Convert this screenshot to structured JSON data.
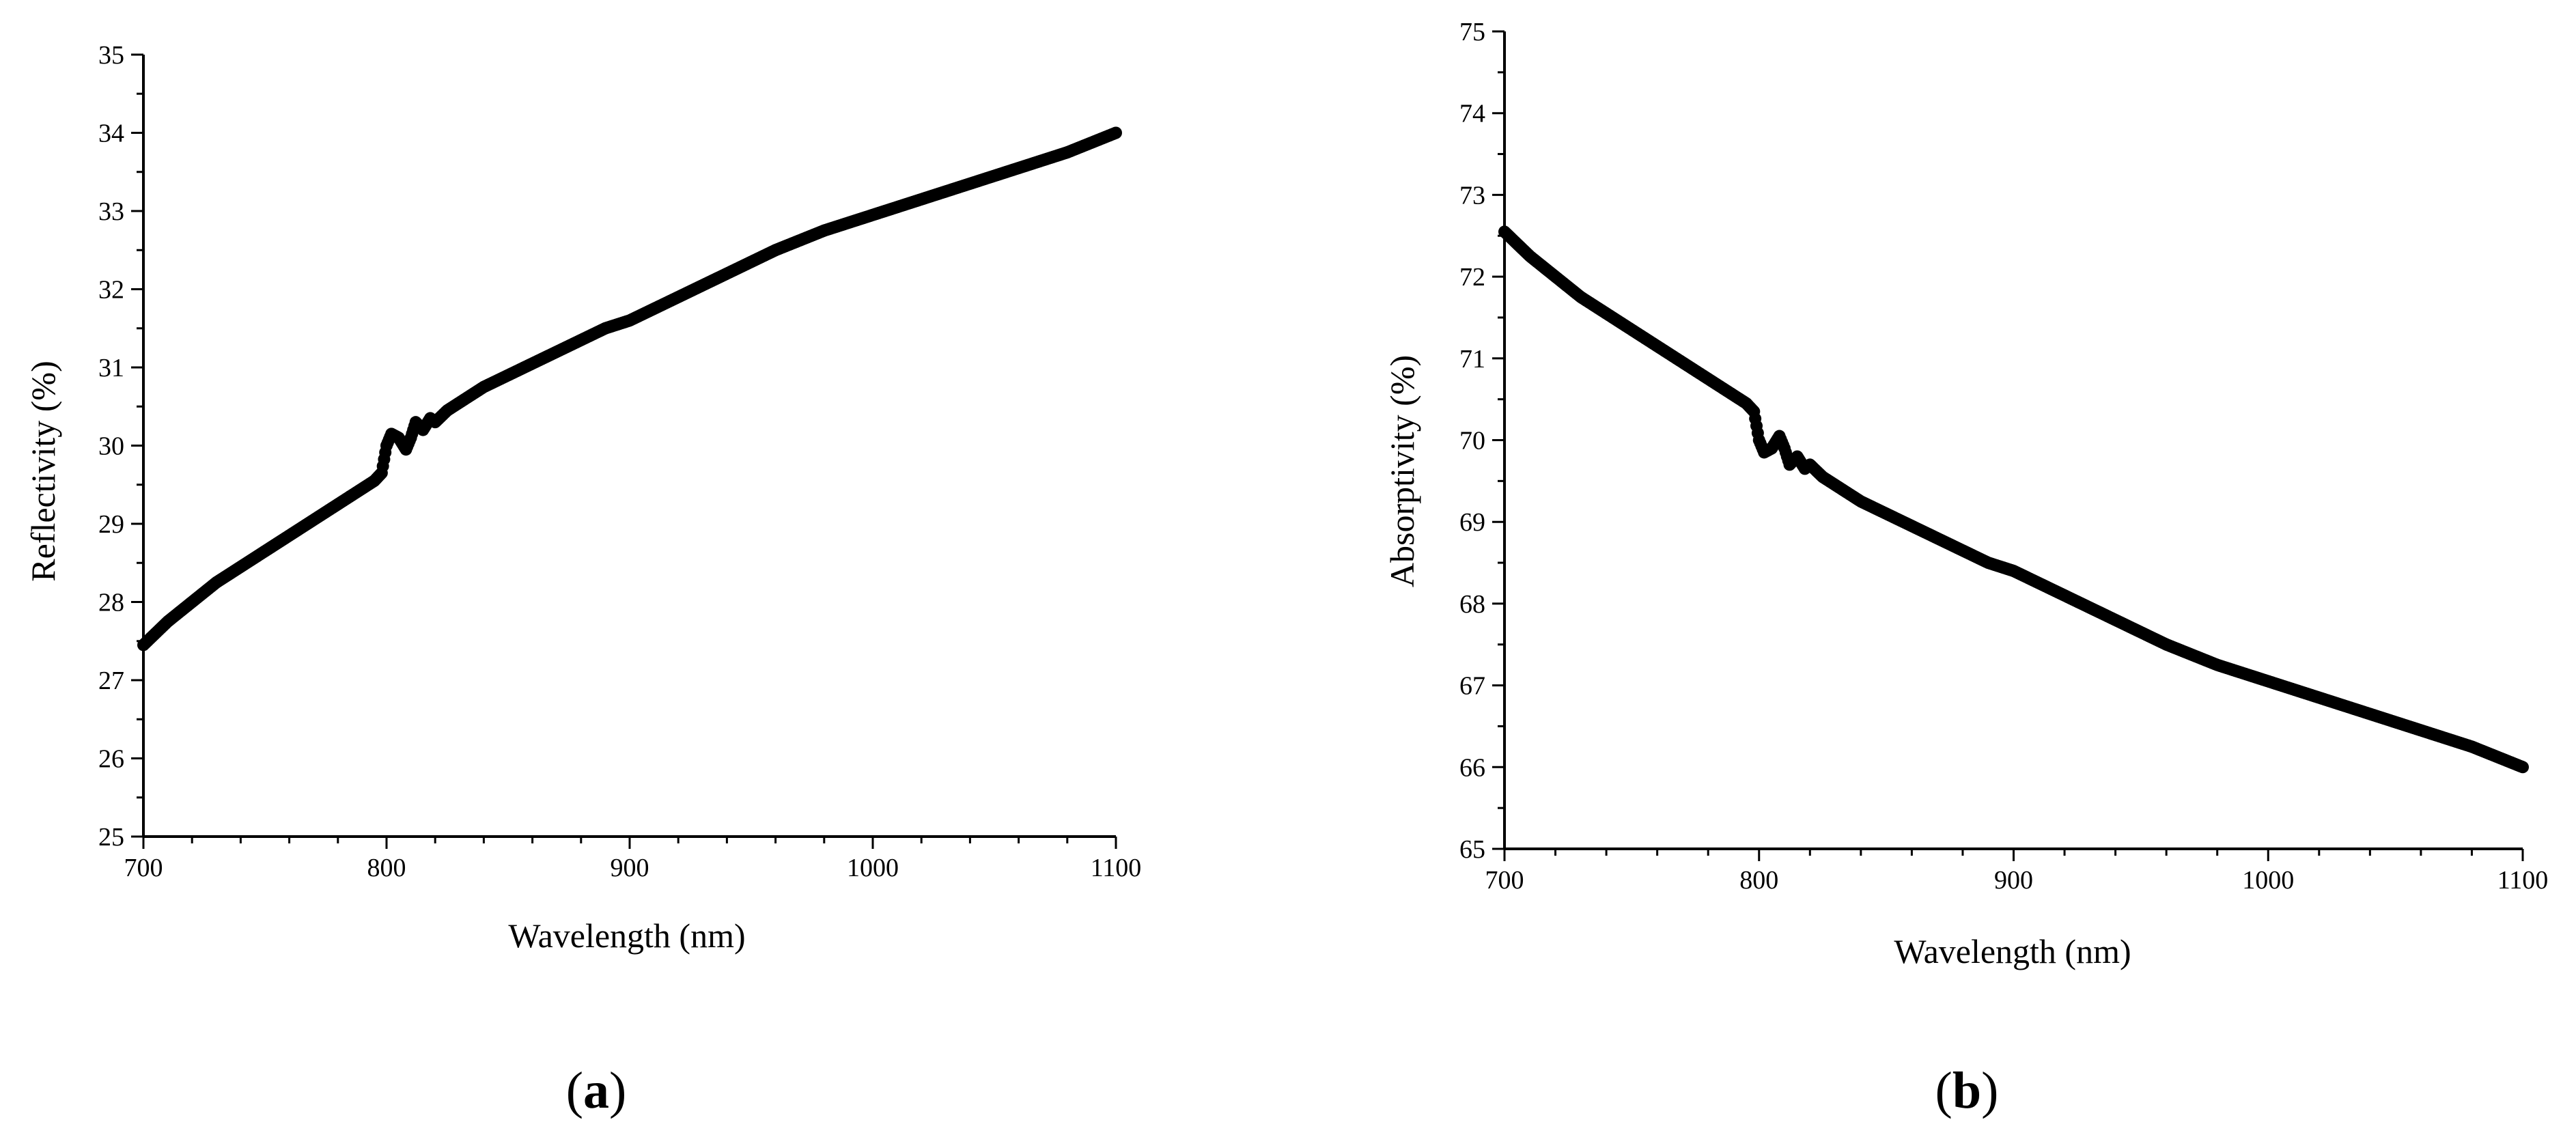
{
  "charts": [
    {
      "panel_label": "(a)",
      "panel_letter": "a",
      "xlabel": "Wavelength (nm)",
      "ylabel": "Reflectivity (%)"
    },
    {
      "panel_label": "(b)",
      "panel_letter": "b",
      "xlabel": "Wavelength (nm)",
      "ylabel": "Absorptivity (%)"
    }
  ],
  "chart_data": [
    {
      "type": "scatter",
      "title": "",
      "xlabel": "Wavelength (nm)",
      "ylabel": "Reflectivity (%)",
      "xlim": [
        700,
        1100
      ],
      "ylim": [
        25,
        35
      ],
      "x_ticks": [
        700,
        800,
        900,
        1000,
        1100
      ],
      "y_ticks": [
        25,
        26,
        27,
        28,
        29,
        30,
        31,
        32,
        33,
        34,
        35
      ],
      "grid": false,
      "series": [
        {
          "x": [
            700,
            710,
            720,
            730,
            740,
            750,
            760,
            770,
            780,
            790,
            795,
            798,
            800,
            802,
            805,
            808,
            810,
            812,
            815,
            818,
            820,
            825,
            830,
            840,
            850,
            860,
            870,
            880,
            890,
            900,
            920,
            940,
            960,
            980,
            1000,
            1020,
            1040,
            1060,
            1080,
            1100
          ],
          "y": [
            27.45,
            27.75,
            28.0,
            28.25,
            28.45,
            28.65,
            28.85,
            29.05,
            29.25,
            29.45,
            29.55,
            29.65,
            30.0,
            30.15,
            30.1,
            29.95,
            30.1,
            30.3,
            30.2,
            30.35,
            30.3,
            30.45,
            30.55,
            30.75,
            30.9,
            31.05,
            31.2,
            31.35,
            31.5,
            31.6,
            31.9,
            32.2,
            32.5,
            32.75,
            32.95,
            33.15,
            33.35,
            33.55,
            33.75,
            34.0
          ]
        }
      ]
    },
    {
      "type": "scatter",
      "title": "",
      "xlabel": "Wavelength (nm)",
      "ylabel": "Absorptivity (%)",
      "xlim": [
        700,
        1100
      ],
      "ylim": [
        65,
        75
      ],
      "x_ticks": [
        700,
        800,
        900,
        1000,
        1100
      ],
      "y_ticks": [
        65,
        66,
        67,
        68,
        69,
        70,
        71,
        72,
        73,
        74,
        75
      ],
      "grid": false,
      "series": [
        {
          "x": [
            700,
            710,
            720,
            730,
            740,
            750,
            760,
            770,
            780,
            790,
            795,
            798,
            800,
            802,
            805,
            808,
            810,
            812,
            815,
            818,
            820,
            825,
            830,
            840,
            850,
            860,
            870,
            880,
            890,
            900,
            920,
            940,
            960,
            980,
            1000,
            1020,
            1040,
            1060,
            1080,
            1100
          ],
          "y": [
            72.55,
            72.25,
            72.0,
            71.75,
            71.55,
            71.35,
            71.15,
            70.95,
            70.75,
            70.55,
            70.45,
            70.35,
            70.0,
            69.85,
            69.9,
            70.05,
            69.9,
            69.7,
            69.8,
            69.65,
            69.7,
            69.55,
            69.45,
            69.25,
            69.1,
            68.95,
            68.8,
            68.65,
            68.5,
            68.4,
            68.1,
            67.8,
            67.5,
            67.25,
            67.05,
            66.85,
            66.65,
            66.45,
            66.25,
            66.0
          ]
        }
      ]
    }
  ]
}
